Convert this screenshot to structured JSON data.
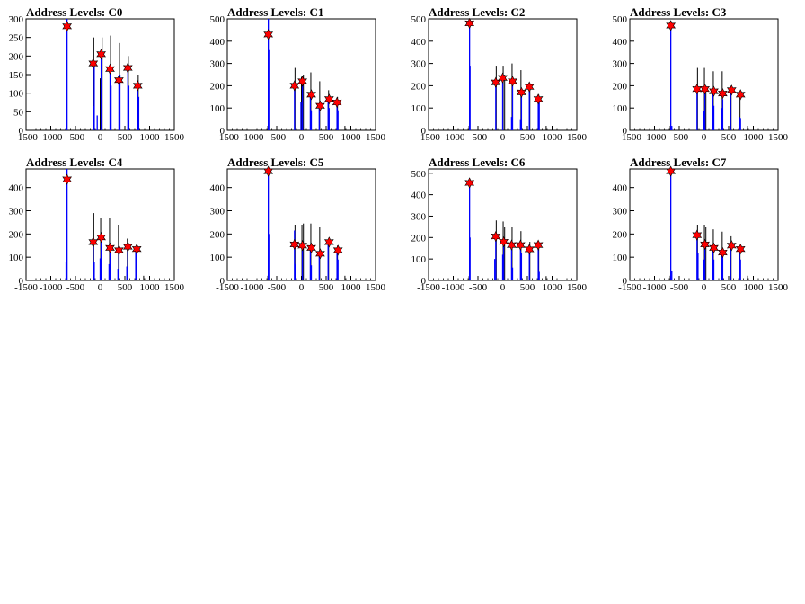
{
  "colors": {
    "histogram": "#0000ff",
    "sidebands": "#000000",
    "peak_marker": "#ff0000",
    "axis": "#000000"
  },
  "xaxis": {
    "ticks": [
      -1500,
      -1000,
      -500,
      0,
      500,
      1000,
      1500
    ],
    "labels": [
      "-1500",
      "-1000",
      "-500",
      "0",
      "500",
      "1000",
      "1500"
    ]
  },
  "chart_data": [
    {
      "type": "bar",
      "title": "Address Levels: C0",
      "xlim": [
        -1500,
        1500
      ],
      "ylim": [
        0,
        300
      ],
      "yticks": [
        0,
        50,
        100,
        150,
        200,
        250,
        300
      ],
      "bars": [
        [
          -670,
          300
        ],
        [
          -140,
          65
        ],
        [
          -120,
          180
        ],
        [
          -60,
          40
        ],
        [
          20,
          195
        ],
        [
          200,
          165
        ],
        [
          220,
          120
        ],
        [
          380,
          135
        ],
        [
          400,
          150
        ],
        [
          560,
          170
        ],
        [
          580,
          120
        ],
        [
          760,
          120
        ],
        [
          780,
          90
        ]
      ],
      "side": [
        [
          -680,
          15
        ],
        [
          -130,
          250
        ],
        [
          0,
          140
        ],
        [
          40,
          250
        ],
        [
          210,
          255
        ],
        [
          390,
          235
        ],
        [
          570,
          200
        ],
        [
          770,
          150
        ]
      ],
      "peaks": [
        [
          -670,
          280
        ],
        [
          -140,
          180
        ],
        [
          20,
          205
        ],
        [
          200,
          165
        ],
        [
          380,
          135
        ],
        [
          560,
          168
        ],
        [
          760,
          120
        ]
      ]
    },
    {
      "type": "bar",
      "title": "Address Levels: C1",
      "xlim": [
        -1500,
        1500
      ],
      "ylim": [
        0,
        500
      ],
      "yticks": [
        0,
        100,
        200,
        300,
        400,
        500
      ],
      "bars": [
        [
          -670,
          500
        ],
        [
          -660,
          360
        ],
        [
          -140,
          200
        ],
        [
          -10,
          125
        ],
        [
          20,
          210
        ],
        [
          180,
          160
        ],
        [
          200,
          90
        ],
        [
          360,
          110
        ],
        [
          540,
          140
        ],
        [
          560,
          100
        ],
        [
          720,
          125
        ],
        [
          740,
          90
        ]
      ],
      "side": [
        [
          -680,
          20
        ],
        [
          -130,
          280
        ],
        [
          0,
          240
        ],
        [
          40,
          250
        ],
        [
          190,
          260
        ],
        [
          370,
          220
        ],
        [
          550,
          180
        ],
        [
          730,
          150
        ],
        [
          880,
          20
        ]
      ],
      "peaks": [
        [
          -670,
          430
        ],
        [
          -140,
          200
        ],
        [
          20,
          220
        ],
        [
          200,
          160
        ],
        [
          380,
          110
        ],
        [
          560,
          140
        ],
        [
          720,
          125
        ]
      ]
    },
    {
      "type": "bar",
      "title": "Address Levels: C2",
      "xlim": [
        -1500,
        1500
      ],
      "ylim": [
        0,
        500
      ],
      "yticks": [
        0,
        100,
        200,
        300,
        400,
        500
      ],
      "bars": [
        [
          -670,
          490
        ],
        [
          -660,
          290
        ],
        [
          -140,
          215
        ],
        [
          0,
          230
        ],
        [
          180,
          60
        ],
        [
          200,
          210
        ],
        [
          360,
          50
        ],
        [
          380,
          170
        ],
        [
          540,
          195
        ],
        [
          720,
          140
        ],
        [
          740,
          150
        ]
      ],
      "side": [
        [
          -680,
          20
        ],
        [
          -130,
          290
        ],
        [
          10,
          290
        ],
        [
          40,
          250
        ],
        [
          190,
          300
        ],
        [
          370,
          270
        ],
        [
          550,
          200
        ],
        [
          730,
          160
        ],
        [
          880,
          20
        ]
      ],
      "peaks": [
        [
          -670,
          480
        ],
        [
          -140,
          215
        ],
        [
          0,
          235
        ],
        [
          200,
          220
        ],
        [
          380,
          170
        ],
        [
          540,
          195
        ],
        [
          720,
          140
        ]
      ]
    },
    {
      "type": "bar",
      "title": "Address Levels: C3",
      "xlim": [
        -1500,
        1500
      ],
      "ylim": [
        0,
        500
      ],
      "yticks": [
        0,
        100,
        200,
        300,
        400,
        500
      ],
      "bars": [
        [
          -670,
          470
        ],
        [
          -650,
          20
        ],
        [
          -140,
          180
        ],
        [
          0,
          85
        ],
        [
          20,
          190
        ],
        [
          180,
          170
        ],
        [
          200,
          110
        ],
        [
          360,
          100
        ],
        [
          380,
          140
        ],
        [
          540,
          180
        ],
        [
          720,
          60
        ],
        [
          740,
          55
        ]
      ],
      "side": [
        [
          -680,
          20
        ],
        [
          -130,
          280
        ],
        [
          10,
          280
        ],
        [
          40,
          200
        ],
        [
          190,
          265
        ],
        [
          370,
          265
        ],
        [
          550,
          200
        ],
        [
          730,
          160
        ],
        [
          880,
          20
        ]
      ],
      "peaks": [
        [
          -670,
          470
        ],
        [
          -140,
          185
        ],
        [
          20,
          185
        ],
        [
          200,
          175
        ],
        [
          380,
          165
        ],
        [
          560,
          180
        ],
        [
          740,
          160
        ]
      ]
    },
    {
      "type": "bar",
      "title": "Address Levels: C4",
      "xlim": [
        -1500,
        1500
      ],
      "ylim": [
        0,
        480
      ],
      "yticks": [
        0,
        100,
        200,
        300,
        400
      ],
      "bars": [
        [
          -690,
          80
        ],
        [
          -670,
          480
        ],
        [
          -140,
          160
        ],
        [
          -120,
          80
        ],
        [
          0,
          95
        ],
        [
          20,
          175
        ],
        [
          180,
          70
        ],
        [
          200,
          140
        ],
        [
          360,
          50
        ],
        [
          380,
          130
        ],
        [
          540,
          60
        ],
        [
          560,
          150
        ],
        [
          720,
          130
        ],
        [
          740,
          120
        ]
      ],
      "side": [
        [
          -680,
          20
        ],
        [
          -130,
          290
        ],
        [
          10,
          270
        ],
        [
          190,
          270
        ],
        [
          370,
          240
        ],
        [
          550,
          180
        ],
        [
          730,
          150
        ],
        [
          880,
          20
        ]
      ],
      "peaks": [
        [
          -670,
          435
        ],
        [
          -140,
          165
        ],
        [
          20,
          185
        ],
        [
          200,
          140
        ],
        [
          380,
          130
        ],
        [
          560,
          145
        ],
        [
          740,
          135
        ]
      ]
    },
    {
      "type": "bar",
      "title": "Address Levels: C5",
      "xlim": [
        -1500,
        1500
      ],
      "ylim": [
        0,
        480
      ],
      "yticks": [
        0,
        100,
        200,
        300,
        400
      ],
      "bars": [
        [
          -670,
          480
        ],
        [
          -660,
          200
        ],
        [
          -140,
          215
        ],
        [
          -120,
          70
        ],
        [
          20,
          155
        ],
        [
          180,
          150
        ],
        [
          200,
          65
        ],
        [
          360,
          115
        ],
        [
          540,
          160
        ],
        [
          720,
          130
        ],
        [
          740,
          90
        ]
      ],
      "side": [
        [
          -680,
          20
        ],
        [
          -130,
          240
        ],
        [
          10,
          240
        ],
        [
          40,
          245
        ],
        [
          190,
          245
        ],
        [
          370,
          230
        ],
        [
          550,
          175
        ],
        [
          730,
          150
        ],
        [
          880,
          20
        ]
      ],
      "peaks": [
        [
          -670,
          470
        ],
        [
          -140,
          155
        ],
        [
          20,
          150
        ],
        [
          200,
          140
        ],
        [
          380,
          115
        ],
        [
          560,
          165
        ],
        [
          740,
          130
        ]
      ]
    },
    {
      "type": "bar",
      "title": "Address Levels: C6",
      "xlim": [
        -1500,
        1500
      ],
      "ylim": [
        0,
        520
      ],
      "yticks": [
        0,
        100,
        200,
        300,
        400,
        500
      ],
      "bars": [
        [
          -670,
          460
        ],
        [
          -660,
          200
        ],
        [
          -160,
          100
        ],
        [
          -140,
          210
        ],
        [
          0,
          120
        ],
        [
          20,
          170
        ],
        [
          180,
          160
        ],
        [
          200,
          60
        ],
        [
          360,
          160
        ],
        [
          380,
          130
        ],
        [
          540,
          150
        ],
        [
          720,
          155
        ],
        [
          740,
          40
        ]
      ],
      "side": [
        [
          -680,
          20
        ],
        [
          -130,
          280
        ],
        [
          10,
          275
        ],
        [
          40,
          250
        ],
        [
          190,
          250
        ],
        [
          370,
          230
        ],
        [
          550,
          180
        ],
        [
          730,
          160
        ],
        [
          880,
          20
        ]
      ],
      "peaks": [
        [
          -670,
          455
        ],
        [
          -140,
          205
        ],
        [
          20,
          180
        ],
        [
          180,
          165
        ],
        [
          360,
          165
        ],
        [
          540,
          145
        ],
        [
          720,
          165
        ]
      ]
    },
    {
      "type": "bar",
      "title": "Address Levels: C7",
      "xlim": [
        -1500,
        1500
      ],
      "ylim": [
        0,
        480
      ],
      "yticks": [
        0,
        100,
        200,
        300,
        400
      ],
      "bars": [
        [
          -670,
          480
        ],
        [
          -650,
          40
        ],
        [
          -140,
          200
        ],
        [
          -120,
          120
        ],
        [
          0,
          90
        ],
        [
          20,
          150
        ],
        [
          180,
          140
        ],
        [
          200,
          90
        ],
        [
          360,
          110
        ],
        [
          380,
          120
        ],
        [
          540,
          150
        ],
        [
          720,
          140
        ],
        [
          740,
          90
        ]
      ],
      "side": [
        [
          -680,
          20
        ],
        [
          -130,
          240
        ],
        [
          10,
          240
        ],
        [
          40,
          230
        ],
        [
          190,
          220
        ],
        [
          370,
          210
        ],
        [
          550,
          190
        ],
        [
          730,
          150
        ],
        [
          880,
          20
        ]
      ],
      "peaks": [
        [
          -670,
          470
        ],
        [
          -140,
          195
        ],
        [
          20,
          155
        ],
        [
          200,
          140
        ],
        [
          380,
          120
        ],
        [
          560,
          150
        ],
        [
          740,
          135
        ]
      ]
    }
  ]
}
